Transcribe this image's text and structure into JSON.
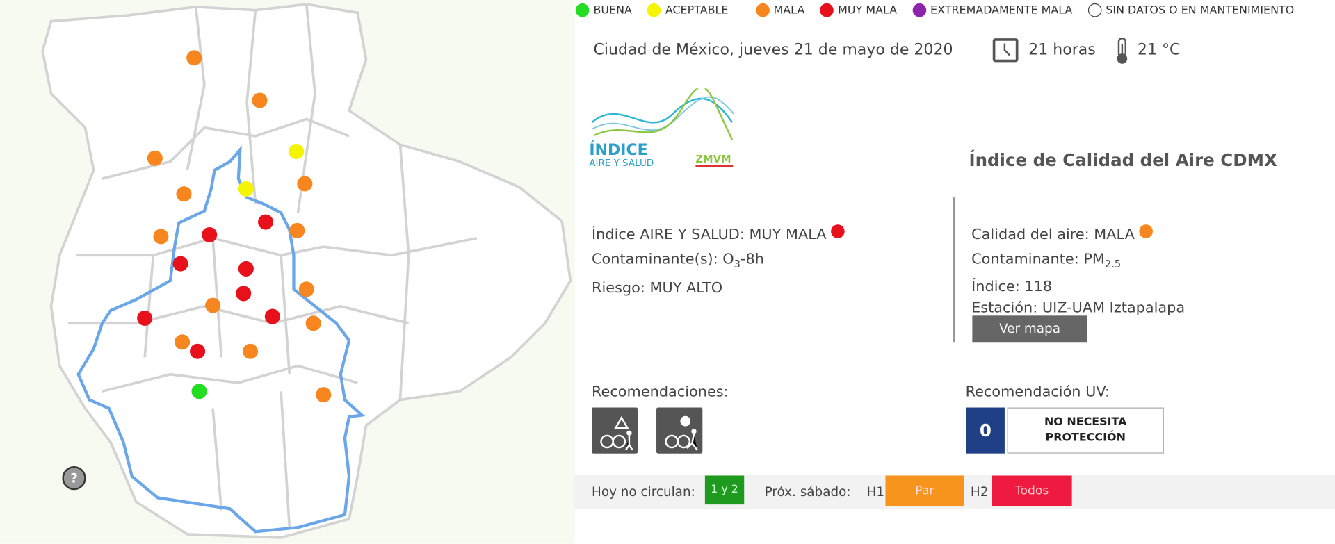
{
  "legend": [
    "BUENA",
    "ACEPTABLE",
    "MALA",
    "MUY MALA",
    "EXTREMADAMENTE MALA",
    "SIN DATOS O EN MANTENIMIENTO"
  ],
  "header": {
    "location_date": "Ciudad de México, jueves 21 de mayo de 2020",
    "time": "21 horas",
    "temperature": "21 °C"
  },
  "logo": {
    "name": "ÍNDICE",
    "subtitle": "AIRE Y SALUD",
    "region": "ZMVM"
  },
  "title": "Índice de Calidad del Aire CDMX",
  "index_aire_salud": {
    "index": "Índice AIRE Y SALUD: MUY MALA",
    "contaminant": "Contaminante(s): O",
    "contaminant_sub": "3",
    "contaminant_suffix": "-8h",
    "risk": "Riesgo: MUY ALTO"
  },
  "calidad_aire": {
    "quality": "Calidad del aire: MALA",
    "contaminant": "Contaminante: PM",
    "contaminant_sub": "2.5",
    "index": "Índice: 118",
    "station": "Estación: UIZ-UAM Iztapalapa",
    "button": "Ver mapa"
  },
  "recomendaciones": {
    "label": "Recomendaciones:"
  },
  "uv": {
    "label": "Recomendación UV:",
    "level": "0",
    "recommendation": "NO NECESITA PROTECCIÓN"
  },
  "hoy_no_circula": {
    "label": "Hoy no circulan:",
    "today": "1 y 2",
    "saturday_label": "Próx. sábado:",
    "h1_label": "H1",
    "h1": "Par",
    "h2_label": "H2",
    "h2": "Todos"
  }
}
